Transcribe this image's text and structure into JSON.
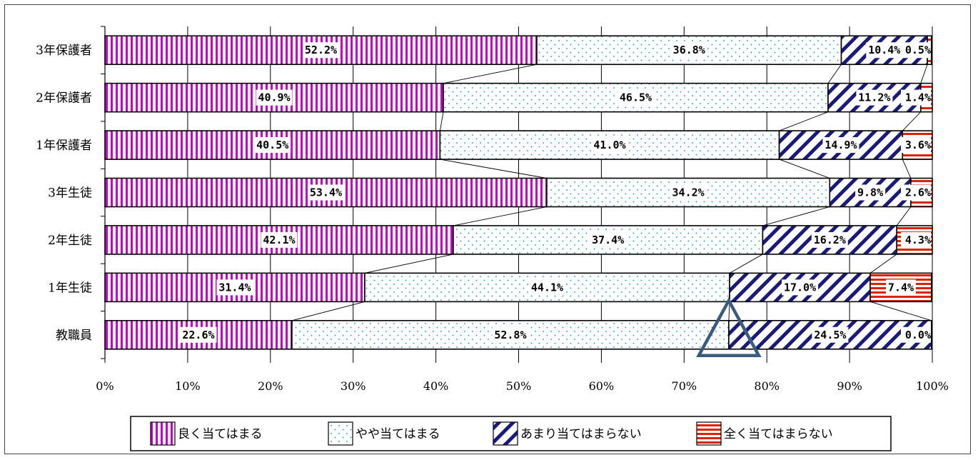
{
  "chart_data": {
    "type": "bar",
    "orientation": "horizontal",
    "stacked": "100%",
    "categories": [
      "3年保護者",
      "2年保護者",
      "1年保護者",
      "3年生徒",
      "2年生徒",
      "1年生徒",
      "教職員"
    ],
    "series": [
      {
        "name": "良く当てはまる",
        "values": [
          52.2,
          40.9,
          40.5,
          53.4,
          42.1,
          31.4,
          22.6
        ],
        "color": "#cc00cc",
        "pattern": "vertical-lines"
      },
      {
        "name": "やや当てはまる",
        "values": [
          36.8,
          46.5,
          41.0,
          34.2,
          37.4,
          44.1,
          52.8
        ],
        "color": "#009999",
        "pattern": "dots"
      },
      {
        "name": "あまり当てはまらない",
        "values": [
          10.4,
          11.2,
          14.9,
          9.8,
          16.2,
          17.0,
          24.5
        ],
        "color": "#1a1a7a",
        "pattern": "diagonal-lines"
      },
      {
        "name": "全く当てはまらない",
        "values": [
          0.5,
          1.4,
          3.6,
          2.6,
          4.3,
          7.4,
          0.0
        ],
        "color": "#dd2200",
        "pattern": "horizontal-lines"
      }
    ],
    "data_labels": [
      [
        "52.2%",
        "36.8%",
        "10.4%",
        "0.5%"
      ],
      [
        "40.9%",
        "46.5%",
        "11.2%",
        "1.4%"
      ],
      [
        "40.5%",
        "41.0%",
        "14.9%",
        "3.6%"
      ],
      [
        "53.4%",
        "34.2%",
        "9.8%",
        "2.6%"
      ],
      [
        "42.1%",
        "37.4%",
        "16.2%",
        "4.3%"
      ],
      [
        "31.4%",
        "44.1%",
        "17.0%",
        "7.4%"
      ],
      [
        "22.6%",
        "52.8%",
        "24.5%",
        "0.0%"
      ]
    ],
    "xaxis_ticks": [
      "0%",
      "10%",
      "20%",
      "30%",
      "40%",
      "50%",
      "60%",
      "70%",
      "80%",
      "90%",
      "100%"
    ],
    "xlim": [
      0,
      100
    ],
    "series_lines": true,
    "grid": "vertical",
    "legend_position": "bottom",
    "annotation": {
      "shape": "triangle",
      "at_value": 75.4,
      "category": "教職員",
      "color": "#3a5a80"
    }
  }
}
